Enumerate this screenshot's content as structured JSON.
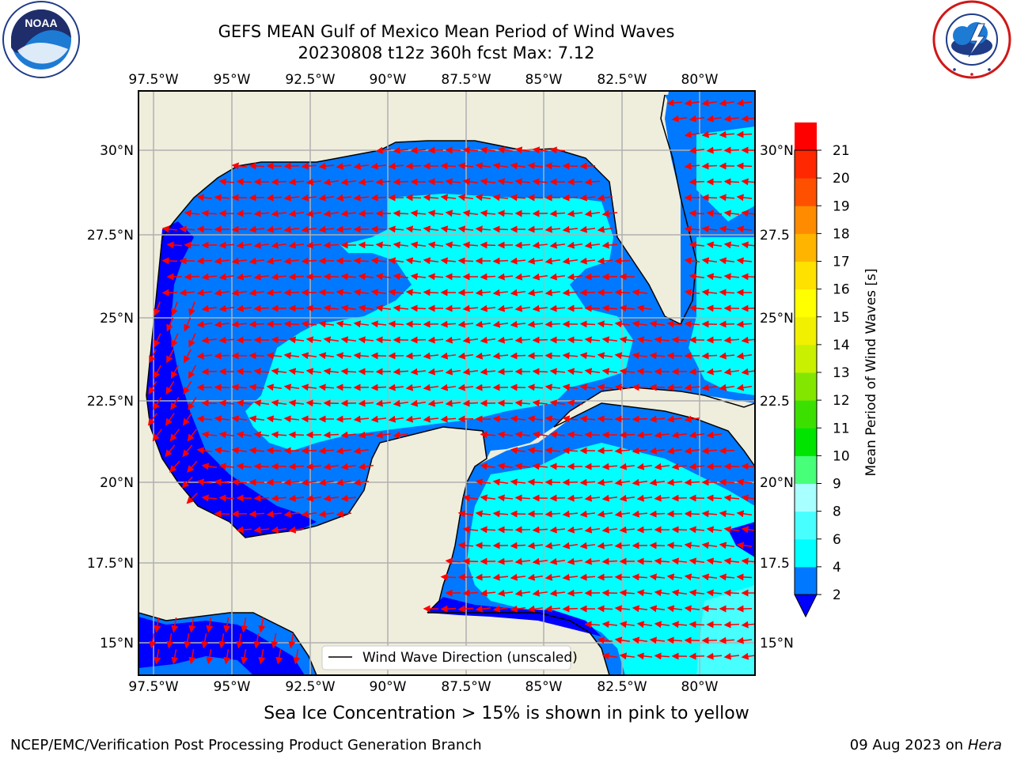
{
  "header": {
    "title_line1": "GEFS MEAN Gulf of Mexico Mean Period of Wind Waves",
    "title_line2": "20230808 t12z 360h fcst   Max: 7.12"
  },
  "logos": {
    "left": {
      "text": "NOAA",
      "ring_text": "NATIONAL OCEANIC AND ATMOSPHERIC ADMINISTRATION · U.S. DEPARTMENT OF COMMERCE"
    },
    "right": {
      "ring_text": "NATIONAL WEATHER SERVICE"
    }
  },
  "map": {
    "lon_labels": [
      "97.5°W",
      "95°W",
      "92.5°W",
      "90°W",
      "87.5°W",
      "85°W",
      "82.5°W",
      "80°W"
    ],
    "lat_labels_left": [
      "30°N",
      "27.5°N",
      "25°N",
      "22.5°N",
      "20°N",
      "17.5°N",
      "15°N"
    ],
    "lat_labels_right": [
      "30°N",
      "27.5",
      "25°N",
      "22.5",
      "20°N",
      "17.5",
      "15°N"
    ],
    "legend_label": "Wind Wave Direction (unscaled)",
    "land_color": "#efeddc",
    "arrow_color": "#ff0000"
  },
  "colorbar": {
    "label": "Mean Period of Wind Waves [s]",
    "levels": [
      "2",
      "4",
      "6",
      "8",
      "9",
      "10",
      "11",
      "12",
      "13",
      "14",
      "15",
      "16",
      "17",
      "18",
      "19",
      "20",
      "21"
    ],
    "colors": [
      "#0078ff",
      "#00ffff",
      "#48ffff",
      "#a8ffff",
      "#48ff7a",
      "#00e400",
      "#3ce000",
      "#82e600",
      "#c8f000",
      "#f0f000",
      "#ffff00",
      "#ffe100",
      "#ffb400",
      "#ff8c00",
      "#ff5000",
      "#ff2800",
      "#ff0000"
    ],
    "extend_below_color": "#0000ff"
  },
  "footer": {
    "ice_note": "Sea Ice Concentration > 15% is shown in pink to yellow",
    "branch": "NCEP/EMC/Verification Post Processing Product Generation Branch",
    "date": "09 Aug 2023 on",
    "machine": "Hera"
  }
}
